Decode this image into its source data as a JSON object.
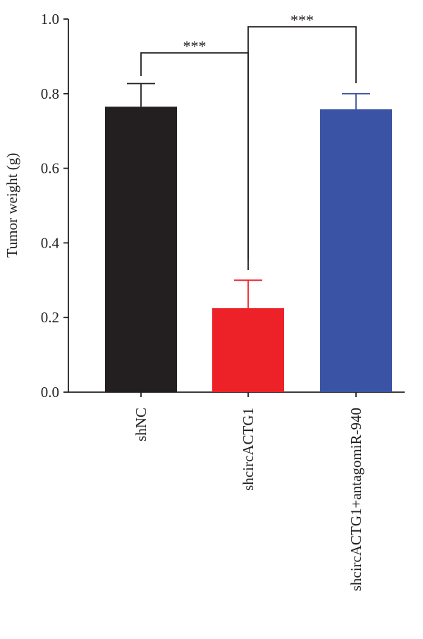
{
  "chart_data": {
    "type": "bar",
    "ylabel": "Tumor weight (g)",
    "ylim": [
      0,
      1.0
    ],
    "yticks": [
      "0.0",
      "0.2",
      "0.4",
      "0.6",
      "0.8",
      "1.0"
    ],
    "grid": false,
    "categories": [
      "shNC",
      "shcircACTG1",
      "shcircACTG1+antagomiR-940"
    ],
    "values": [
      0.765,
      0.225,
      0.758
    ],
    "errors": [
      0.062,
      0.075,
      0.042
    ],
    "colors": [
      "#231f20",
      "#ed2229",
      "#3a53a4"
    ],
    "significance": [
      {
        "from": 0,
        "to": 1,
        "label": "***"
      },
      {
        "from": 1,
        "to": 2,
        "label": "***"
      }
    ]
  }
}
